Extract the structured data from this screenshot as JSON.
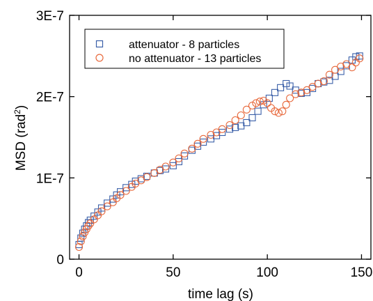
{
  "chart_data": {
    "type": "scatter",
    "xlabel": "time lag (s)",
    "ylabel_main": "MSD (rad",
    "ylabel_sup": "2",
    "ylabel_tail": ")",
    "xlim": [
      -5,
      155
    ],
    "ylim": [
      0,
      3e-07
    ],
    "x_ticks": [
      0,
      50,
      100,
      150
    ],
    "x_tick_labels": [
      "0",
      "50",
      "100",
      "150"
    ],
    "y_ticks": [
      0,
      1e-07,
      2e-07,
      3e-07
    ],
    "y_tick_labels": [
      "0",
      "1E-7",
      "2E-7",
      "3E-7"
    ],
    "grid": false,
    "legend_position": "top-left",
    "series": [
      {
        "name": "attenuator - 8 particles",
        "marker": "square",
        "color": "#3a5fa8",
        "x": [
          0,
          1,
          2,
          3,
          4,
          5,
          6,
          8,
          10,
          12,
          15,
          18,
          20,
          22,
          25,
          28,
          30,
          33,
          36,
          40,
          43,
          46,
          50,
          53,
          56,
          60,
          63,
          66,
          70,
          73,
          76,
          80,
          83,
          86,
          89,
          92,
          95,
          98,
          101,
          104,
          107,
          110,
          112,
          115,
          118,
          121,
          124,
          127,
          130,
          133,
          136,
          139,
          142,
          145,
          147,
          149
        ],
        "y": [
          1.8e-08,
          2.6e-08,
          3.2e-08,
          3.7e-08,
          4.1e-08,
          4.5e-08,
          4.8e-08,
          5.3e-08,
          5.8e-08,
          6.3e-08,
          6.9e-08,
          7.4e-08,
          7.9e-08,
          8.3e-08,
          8.8e-08,
          9.2e-08,
          9.6e-08,
          9.9e-08,
          1.02e-07,
          1.06e-07,
          1.09e-07,
          1.11e-07,
          1.15e-07,
          1.2e-07,
          1.27e-07,
          1.34e-07,
          1.39e-07,
          1.44e-07,
          1.48e-07,
          1.52e-07,
          1.56e-07,
          1.6e-07,
          1.62e-07,
          1.64e-07,
          1.68e-07,
          1.74e-07,
          1.82e-07,
          1.9e-07,
          1.98e-07,
          2.05e-07,
          2.11e-07,
          2.16e-07,
          2.13e-07,
          2.08e-07,
          2.04e-07,
          2.05e-07,
          2.1e-07,
          2.16e-07,
          2.18e-07,
          2.2e-07,
          2.25e-07,
          2.31e-07,
          2.38e-07,
          2.45e-07,
          2.49e-07,
          2.5e-07
        ]
      },
      {
        "name": "no attenuator - 13 particles",
        "marker": "circle",
        "color": "#e8693c",
        "x": [
          0,
          1,
          2,
          3,
          4,
          5,
          6,
          8,
          10,
          12,
          15,
          18,
          20,
          22,
          25,
          28,
          30,
          33,
          36,
          40,
          43,
          46,
          50,
          53,
          56,
          60,
          63,
          66,
          70,
          73,
          76,
          80,
          83,
          86,
          89,
          92,
          94,
          96,
          98,
          100,
          102,
          104,
          106,
          108,
          110,
          112,
          115,
          118,
          121,
          124,
          127,
          130,
          133,
          136,
          139,
          142,
          145,
          147,
          149
        ],
        "y": [
          1.5e-08,
          2.2e-08,
          2.8e-08,
          3.3e-08,
          3.7e-08,
          4.1e-08,
          4.4e-08,
          4.9e-08,
          5.4e-08,
          5.9e-08,
          6.5e-08,
          7e-08,
          7.5e-08,
          7.9e-08,
          8.4e-08,
          8.9e-08,
          9.3e-08,
          9.7e-08,
          1.01e-07,
          1.06e-07,
          1.1e-07,
          1.14e-07,
          1.19e-07,
          1.24e-07,
          1.3e-07,
          1.36e-07,
          1.42e-07,
          1.48e-07,
          1.53e-07,
          1.56e-07,
          1.6e-07,
          1.65e-07,
          1.71e-07,
          1.77e-07,
          1.84e-07,
          1.89e-07,
          1.92e-07,
          1.94e-07,
          1.95e-07,
          1.92e-07,
          1.86e-07,
          1.82e-07,
          1.8e-07,
          1.82e-07,
          1.9e-07,
          1.98e-07,
          2.03e-07,
          2.05e-07,
          2.08e-07,
          2.12e-07,
          2.16e-07,
          2.19e-07,
          2.27e-07,
          2.33e-07,
          2.37e-07,
          2.4e-07,
          2.36e-07,
          2.42e-07,
          2.47e-07
        ]
      }
    ]
  }
}
